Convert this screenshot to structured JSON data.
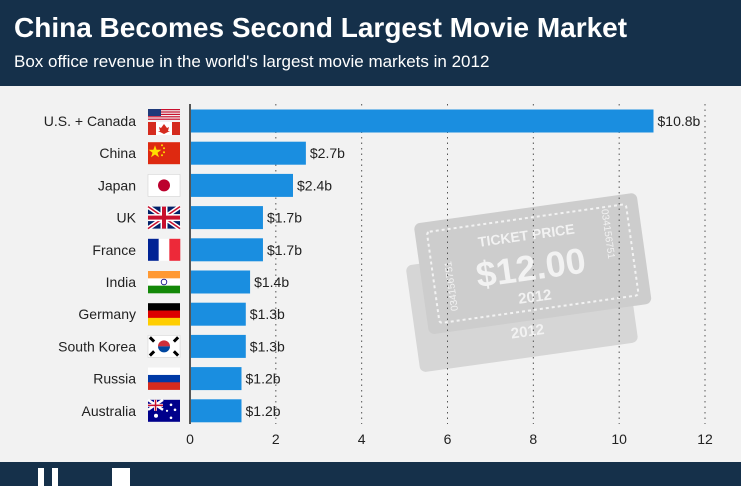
{
  "header": {
    "title": "China Becomes Second Largest Movie Market",
    "subtitle": "Box office revenue in the world's largest movie markets in 2012"
  },
  "ticket": {
    "heading": "TICKET PRICE",
    "price": "$12.00",
    "year": "2012",
    "serial": "034156751",
    "back_year": "2012"
  },
  "colors": {
    "bar": "#1a8ee0",
    "header_bg": "#15304a",
    "background": "#f2f2f2",
    "ticket": "#cfcfcf"
  },
  "chart_data": {
    "type": "bar",
    "orientation": "horizontal",
    "title": "China Becomes Second Largest Movie Market",
    "subtitle": "Box office revenue in the world's largest movie markets in 2012",
    "categories": [
      "U.S. + Canada",
      "China",
      "Japan",
      "UK",
      "France",
      "India",
      "Germany",
      "South Korea",
      "Russia",
      "Australia"
    ],
    "values": [
      10.8,
      2.7,
      2.4,
      1.7,
      1.7,
      1.4,
      1.3,
      1.3,
      1.2,
      1.2
    ],
    "value_labels": [
      "$10.8b",
      "$2.7b",
      "$2.4b",
      "$1.7b",
      "$1.7b",
      "$1.4b",
      "$1.3b",
      "$1.3b",
      "$1.2b",
      "$1.2b"
    ],
    "flags": [
      "us-ca-flag-icon",
      "cn-flag-icon",
      "jp-flag-icon",
      "uk-flag-icon",
      "fr-flag-icon",
      "in-flag-icon",
      "de-flag-icon",
      "kr-flag-icon",
      "ru-flag-icon",
      "au-flag-icon"
    ],
    "xticks": [
      "0",
      "2",
      "4",
      "6",
      "8",
      "10",
      "12"
    ],
    "xlim": [
      0,
      12
    ],
    "grid": "vertical dotted",
    "xlabel": "",
    "ylabel": ""
  }
}
